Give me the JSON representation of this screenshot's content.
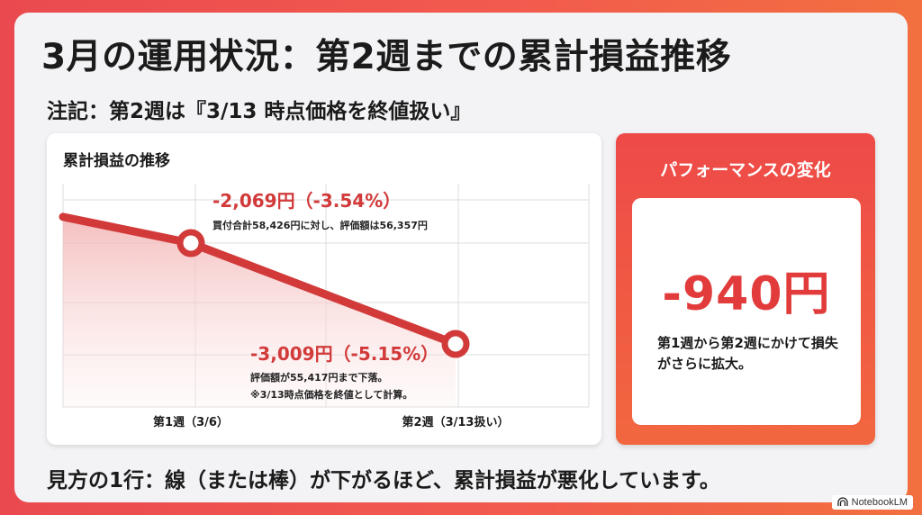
{
  "title": "3月の運用状況：第2週までの累計損益推移",
  "subtitle": "注記：第2週は『3/13 時点価格を終値扱い』",
  "chart_data": {
    "type": "line",
    "title": "累計損益の推移",
    "categories": [
      "第1週（3/6）",
      "第2週（3/13扱い）"
    ],
    "series": [
      {
        "values": [
          -2069,
          -3009
        ],
        "pct": [
          "-3.54%",
          "-5.15%"
        ]
      }
    ],
    "annotations": [
      {
        "label": "-2,069円（-3.54%）",
        "note": "買付合計58,426円に対し、評価額は56,357円"
      },
      {
        "label": "-3,009円（-5.15%）",
        "note": "評価額が55,417円まで下落。",
        "note2": "※3/13時点価格を終値として計算。"
      }
    ],
    "grid": true,
    "color": "#d23a3a"
  },
  "performance": {
    "title": "パフォーマンスの変化",
    "value": "-940円",
    "description": "第1週から第2週にかけて損失がさらに拡大。"
  },
  "footer_note": "見方の1行：線（または棒）が下がるほど、累計損益が悪化しています。",
  "watermark": "NotebookLM"
}
